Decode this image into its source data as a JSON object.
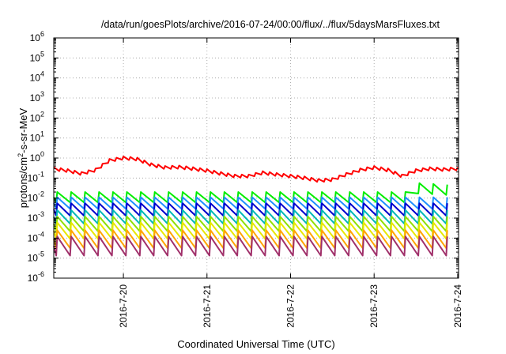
{
  "chart_data": {
    "type": "line",
    "title": "/data/run/goesPlots/archive/2016-07-24/00:00/flux/../flux/5daysMarsFluxes.txt",
    "xlabel": "Coordinated Universal Time (UTC)",
    "ylabel": "protons/cm²-s-sr-MeV",
    "ylabel_parts": {
      "pre": "protons/cm",
      "sup": "2",
      "post": "-s-sr-MeV"
    },
    "yscale": "log",
    "ylim_exponents": [
      -6,
      6
    ],
    "y_tick_exponents": [
      -6,
      -5,
      -4,
      -3,
      -2,
      -1,
      0,
      1,
      2,
      3,
      4,
      5,
      6
    ],
    "y_tick_base": "10",
    "xlim": [
      "2016-07-19 04:00",
      "2016-07-24 00:15"
    ],
    "x_ticks": [
      {
        "date": "2016-07-20",
        "label": "2016-7-20"
      },
      {
        "date": "2016-07-21",
        "label": "2016-7-21"
      },
      {
        "date": "2016-07-22",
        "label": "2016-7-22"
      },
      {
        "date": "2016-07-23",
        "label": "2016-7-23"
      },
      {
        "date": "2016-07-24",
        "label": "2016-7-24"
      }
    ],
    "grid": true,
    "series": [
      {
        "color": "#ff0000",
        "style": "sawtooth_profile",
        "x": [
          "2016-07-19 04:00",
          "2016-07-19 08:00",
          "2016-07-19 12:00",
          "2016-07-19 16:00",
          "2016-07-19 20:00",
          "2016-07-20 00:00",
          "2016-07-20 04:00",
          "2016-07-20 08:00",
          "2016-07-20 12:00",
          "2016-07-20 16:00",
          "2016-07-20 20:00",
          "2016-07-21 00:00",
          "2016-07-21 04:00",
          "2016-07-21 08:00",
          "2016-07-21 12:00",
          "2016-07-21 16:00",
          "2016-07-21 20:00",
          "2016-07-22 00:00",
          "2016-07-22 04:00",
          "2016-07-22 08:00",
          "2016-07-22 12:00",
          "2016-07-22 16:00",
          "2016-07-22 20:00",
          "2016-07-23 00:00",
          "2016-07-23 04:00",
          "2016-07-23 08:00",
          "2016-07-23 12:00",
          "2016-07-23 16:00",
          "2016-07-23 20:00",
          "2016-07-24 00:00"
        ],
        "y": [
          0.35,
          0.28,
          0.2,
          0.3,
          0.9,
          1.2,
          1.05,
          0.55,
          0.4,
          0.42,
          0.35,
          0.28,
          0.2,
          0.15,
          0.15,
          0.22,
          0.18,
          0.15,
          0.12,
          0.09,
          0.1,
          0.18,
          0.3,
          0.4,
          0.3,
          0.15,
          0.28,
          0.35,
          0.32,
          0.35
        ]
      },
      {
        "color": "#00ee00",
        "style": "sawtooth",
        "peak": 0.02,
        "drop": 3.3,
        "start": "2016-07-19 05:00",
        "period_hours": 4,
        "event": {
          "date": "2016-07-23 09:30",
          "peak": 0.06
        }
      },
      {
        "color": "#1e90ff",
        "style": "sawtooth",
        "peak": 0.011,
        "drop": 3.8,
        "start": "2016-07-19 05:00",
        "period_hours": 4
      },
      {
        "color": "#0000cd",
        "style": "sawtooth",
        "peak": 0.0055,
        "drop": 4.2,
        "start": "2016-07-19 05:00",
        "period_hours": 4
      },
      {
        "color": "#00b8b8",
        "style": "sawtooth",
        "peak": 0.0025,
        "drop": 4.8,
        "start": "2016-07-19 05:00",
        "period_hours": 4
      },
      {
        "color": "#90e000",
        "style": "sawtooth",
        "peak": 0.0012,
        "drop": 5.5,
        "start": "2016-07-19 05:00",
        "period_hours": 4
      },
      {
        "color": "#e8e800",
        "style": "sawtooth",
        "peak": 0.0006,
        "drop": 6.5,
        "start": "2016-07-19 05:00",
        "period_hours": 4
      },
      {
        "color": "#ffa500",
        "style": "sawtooth",
        "peak": 0.00025,
        "drop": 8,
        "start": "2016-07-19 05:00",
        "period_hours": 4
      },
      {
        "color": "#a0306a",
        "style": "sawtooth",
        "peak": 0.00012,
        "drop": 9,
        "start": "2016-07-19 05:00",
        "period_hours": 4
      }
    ]
  }
}
